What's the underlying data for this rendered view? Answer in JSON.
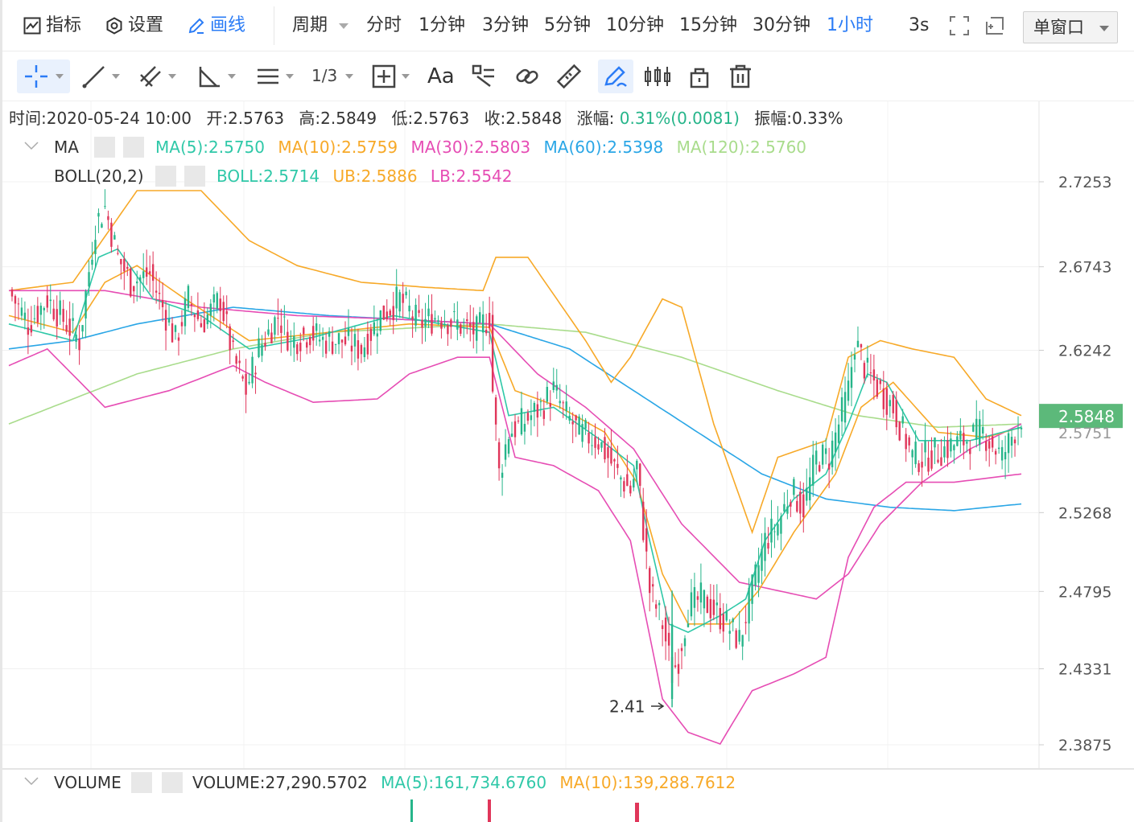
{
  "toolbar": {
    "indicators_label": "指标",
    "settings_label": "设置",
    "draw_label": "画线",
    "period_label": "周期",
    "periods": [
      "分时",
      "1分钟",
      "3分钟",
      "5分钟",
      "10分钟",
      "15分钟",
      "30分钟",
      "1小时"
    ],
    "active_period": "1小时",
    "refresh_label": "3s",
    "window_mode": "单窗口"
  },
  "drawing_tools": [
    "crosshair-icon",
    "line-icon",
    "parallel-lines-icon",
    "angle-icon",
    "horizontal-lines-icon",
    "fibonacci-icon",
    "rect-icon",
    "text-tool-icon",
    "pattern-icon",
    "link-icon",
    "ruler-icon",
    "brush-icon",
    "candles-icon",
    "lock-icon",
    "trash-icon"
  ],
  "text_tool_label": "Aa",
  "ohlc": {
    "time": "时间:2020-05-24 10:00",
    "open": "开:2.5763",
    "high": "高:2.5849",
    "low": "低:2.5763",
    "close": "收:2.5848",
    "change_label": "涨幅:",
    "change_value": "0.31%(0.0081)",
    "amplitude": "振幅:0.33%"
  },
  "indicators": {
    "ma": {
      "name": "MA",
      "ma5": "MA(5):2.5750",
      "ma10": "MA(10):2.5759",
      "ma30": "MA(30):2.5803",
      "ma60": "MA(60):2.5398",
      "ma120": "MA(120):2.5760"
    },
    "boll": {
      "name": "BOLL(20,2)",
      "boll": "BOLL:2.5714",
      "ub": "UB:2.5886",
      "lb": "LB:2.5542"
    },
    "volume": {
      "name": "VOLUME",
      "volume": "VOLUME:27,290.5702",
      "ma5": "MA(5):161,734.6760",
      "ma10": "MA(10):139,288.7612"
    }
  },
  "colors": {
    "up": "#26b58a",
    "down": "#e0365a",
    "ma5": "#2fc8a8",
    "ma10": "#f7a928",
    "ma30": "#e64db4",
    "ma60": "#2aa6e6",
    "ma120": "#a9dc8c",
    "boll_mid": "#2fc8a8",
    "boll_ub": "#f7a928",
    "boll_lb": "#e64db4",
    "price_tag": "#5cb97a",
    "active": "#2b7cf6"
  },
  "chart_data": {
    "type": "candlestick",
    "y_ticks": [
      "2.7253",
      "2.6743",
      "2.6242",
      "2.5268",
      "2.4795",
      "2.4331",
      "2.3875"
    ],
    "y_range": [
      2.36,
      2.74
    ],
    "current_price": "2.5848",
    "current_price_value": 2.5848,
    "overlay_price": "2.5751",
    "min_marker": "2.41",
    "min_marker_value": 2.41,
    "series_anchors": {
      "close": [
        [
          0,
          2.66
        ],
        [
          6,
          2.64
        ],
        [
          12,
          2.655
        ],
        [
          18,
          2.64
        ],
        [
          22,
          2.63
        ],
        [
          27,
          2.7
        ],
        [
          30,
          2.71
        ],
        [
          34,
          2.68
        ],
        [
          38,
          2.665
        ],
        [
          44,
          2.67
        ],
        [
          48,
          2.65
        ],
        [
          52,
          2.63
        ],
        [
          56,
          2.655
        ],
        [
          60,
          2.64
        ],
        [
          66,
          2.655
        ],
        [
          70,
          2.62
        ],
        [
          74,
          2.6
        ],
        [
          78,
          2.625
        ],
        [
          84,
          2.645
        ],
        [
          88,
          2.63
        ],
        [
          94,
          2.635
        ],
        [
          98,
          2.63
        ],
        [
          104,
          2.63
        ],
        [
          110,
          2.625
        ],
        [
          116,
          2.645
        ],
        [
          122,
          2.655
        ],
        [
          128,
          2.64
        ],
        [
          134,
          2.645
        ],
        [
          140,
          2.64
        ],
        [
          146,
          2.635
        ],
        [
          150,
          2.645
        ],
        [
          151,
          2.6
        ],
        [
          153,
          2.55
        ],
        [
          156,
          2.575
        ],
        [
          160,
          2.58
        ],
        [
          166,
          2.59
        ],
        [
          170,
          2.6
        ],
        [
          174,
          2.585
        ],
        [
          178,
          2.575
        ],
        [
          184,
          2.57
        ],
        [
          190,
          2.55
        ],
        [
          194,
          2.54
        ],
        [
          196,
          2.555
        ],
        [
          200,
          2.48
        ],
        [
          204,
          2.46
        ],
        [
          207,
          2.43
        ],
        [
          209,
          2.44
        ],
        [
          212,
          2.47
        ],
        [
          216,
          2.475
        ],
        [
          222,
          2.465
        ],
        [
          228,
          2.45
        ],
        [
          232,
          2.48
        ],
        [
          236,
          2.51
        ],
        [
          240,
          2.52
        ],
        [
          244,
          2.54
        ],
        [
          248,
          2.53
        ],
        [
          252,
          2.56
        ],
        [
          256,
          2.56
        ],
        [
          262,
          2.6
        ],
        [
          264,
          2.63
        ],
        [
          268,
          2.61
        ],
        [
          272,
          2.6
        ],
        [
          276,
          2.59
        ],
        [
          282,
          2.56
        ],
        [
          286,
          2.56
        ],
        [
          292,
          2.565
        ],
        [
          298,
          2.57
        ],
        [
          304,
          2.575
        ],
        [
          310,
          2.56
        ],
        [
          316,
          2.585
        ]
      ],
      "ma5": [
        [
          0,
          2.64
        ],
        [
          20,
          2.63
        ],
        [
          28,
          2.68
        ],
        [
          34,
          2.685
        ],
        [
          45,
          2.655
        ],
        [
          60,
          2.645
        ],
        [
          75,
          2.625
        ],
        [
          95,
          2.632
        ],
        [
          120,
          2.645
        ],
        [
          150,
          2.635
        ],
        [
          156,
          2.585
        ],
        [
          170,
          2.59
        ],
        [
          185,
          2.57
        ],
        [
          195,
          2.555
        ],
        [
          200,
          2.51
        ],
        [
          206,
          2.46
        ],
        [
          212,
          2.455
        ],
        [
          222,
          2.465
        ],
        [
          230,
          2.475
        ],
        [
          236,
          2.51
        ],
        [
          245,
          2.535
        ],
        [
          255,
          2.55
        ],
        [
          262,
          2.58
        ],
        [
          268,
          2.61
        ],
        [
          274,
          2.605
        ],
        [
          284,
          2.57
        ],
        [
          300,
          2.57
        ],
        [
          316,
          2.578
        ]
      ],
      "ma10": [
        [
          0,
          2.645
        ],
        [
          20,
          2.635
        ],
        [
          30,
          2.665
        ],
        [
          40,
          2.675
        ],
        [
          55,
          2.655
        ],
        [
          75,
          2.63
        ],
        [
          100,
          2.635
        ],
        [
          125,
          2.64
        ],
        [
          150,
          2.638
        ],
        [
          158,
          2.6
        ],
        [
          172,
          2.59
        ],
        [
          186,
          2.575
        ],
        [
          196,
          2.545
        ],
        [
          204,
          2.49
        ],
        [
          212,
          2.46
        ],
        [
          225,
          2.46
        ],
        [
          234,
          2.48
        ],
        [
          245,
          2.515
        ],
        [
          258,
          2.55
        ],
        [
          266,
          2.59
        ],
        [
          276,
          2.605
        ],
        [
          290,
          2.575
        ],
        [
          305,
          2.572
        ],
        [
          316,
          2.578
        ]
      ],
      "ma30": [
        [
          0,
          2.66
        ],
        [
          30,
          2.66
        ],
        [
          60,
          2.65
        ],
        [
          90,
          2.645
        ],
        [
          120,
          2.643
        ],
        [
          150,
          2.64
        ],
        [
          165,
          2.61
        ],
        [
          180,
          2.59
        ],
        [
          195,
          2.565
        ],
        [
          210,
          2.52
        ],
        [
          228,
          2.485
        ],
        [
          240,
          2.48
        ],
        [
          252,
          2.475
        ],
        [
          262,
          2.49
        ],
        [
          272,
          2.52
        ],
        [
          285,
          2.545
        ],
        [
          300,
          2.565
        ],
        [
          316,
          2.58
        ]
      ],
      "ma60": [
        [
          0,
          2.625
        ],
        [
          20,
          2.63
        ],
        [
          40,
          2.64
        ],
        [
          70,
          2.65
        ],
        [
          100,
          2.645
        ],
        [
          150,
          2.64
        ],
        [
          175,
          2.625
        ],
        [
          195,
          2.6
        ],
        [
          215,
          2.575
        ],
        [
          235,
          2.55
        ],
        [
          255,
          2.535
        ],
        [
          275,
          2.53
        ],
        [
          295,
          2.528
        ],
        [
          316,
          2.532
        ]
      ],
      "ma120": [
        [
          0,
          2.58
        ],
        [
          20,
          2.595
        ],
        [
          40,
          2.61
        ],
        [
          70,
          2.625
        ],
        [
          100,
          2.635
        ],
        [
          150,
          2.64
        ],
        [
          180,
          2.635
        ],
        [
          210,
          2.62
        ],
        [
          240,
          2.6
        ],
        [
          265,
          2.585
        ],
        [
          290,
          2.578
        ],
        [
          316,
          2.58
        ]
      ],
      "boll_ub": [
        [
          0,
          2.66
        ],
        [
          20,
          2.665
        ],
        [
          40,
          2.72
        ],
        [
          60,
          2.72
        ],
        [
          75,
          2.69
        ],
        [
          90,
          2.675
        ],
        [
          110,
          2.665
        ],
        [
          130,
          2.662
        ],
        [
          148,
          2.66
        ],
        [
          152,
          2.68
        ],
        [
          162,
          2.68
        ],
        [
          180,
          2.63
        ],
        [
          188,
          2.605
        ],
        [
          194,
          2.62
        ],
        [
          204,
          2.655
        ],
        [
          210,
          2.65
        ],
        [
          220,
          2.58
        ],
        [
          232,
          2.515
        ],
        [
          240,
          2.56
        ],
        [
          255,
          2.57
        ],
        [
          262,
          2.62
        ],
        [
          272,
          2.63
        ],
        [
          282,
          2.625
        ],
        [
          295,
          2.62
        ],
        [
          305,
          2.595
        ],
        [
          316,
          2.585
        ]
      ],
      "boll_lb": [
        [
          0,
          2.615
        ],
        [
          12,
          2.625
        ],
        [
          30,
          2.59
        ],
        [
          50,
          2.6
        ],
        [
          70,
          2.615
        ],
        [
          80,
          2.605
        ],
        [
          95,
          2.593
        ],
        [
          115,
          2.595
        ],
        [
          125,
          2.61
        ],
        [
          140,
          2.62
        ],
        [
          150,
          2.62
        ],
        [
          158,
          2.56
        ],
        [
          170,
          2.555
        ],
        [
          184,
          2.54
        ],
        [
          194,
          2.51
        ],
        [
          204,
          2.415
        ],
        [
          212,
          2.395
        ],
        [
          222,
          2.388
        ],
        [
          232,
          2.42
        ],
        [
          245,
          2.43
        ],
        [
          255,
          2.44
        ],
        [
          262,
          2.5
        ],
        [
          270,
          2.53
        ],
        [
          280,
          2.545
        ],
        [
          295,
          2.545
        ],
        [
          316,
          2.55
        ]
      ]
    }
  }
}
